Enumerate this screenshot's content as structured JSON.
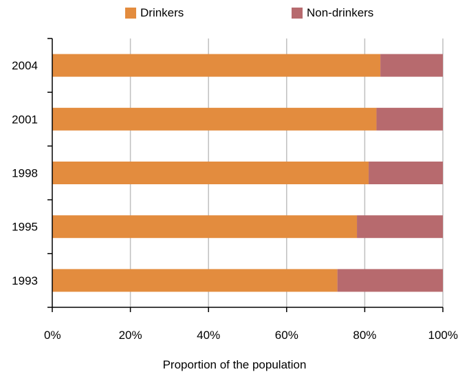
{
  "chart_data": {
    "type": "bar",
    "orientation": "horizontal",
    "stacked": true,
    "categories": [
      "2004",
      "2001",
      "1998",
      "1995",
      "1993"
    ],
    "series": [
      {
        "name": "Drinkers",
        "color": "#E38C3E",
        "values": [
          84,
          83,
          81,
          78,
          73
        ]
      },
      {
        "name": "Non-drinkers",
        "color": "#B76A6E",
        "values": [
          16,
          17,
          19,
          22,
          27
        ]
      }
    ],
    "xticks": [
      "0%",
      "20%",
      "40%",
      "60%",
      "80%",
      "100%"
    ],
    "xlim": [
      0,
      100
    ],
    "xlabel": "Proportion of the population",
    "ylabel": "",
    "grid": "vertical",
    "legend": "top"
  }
}
